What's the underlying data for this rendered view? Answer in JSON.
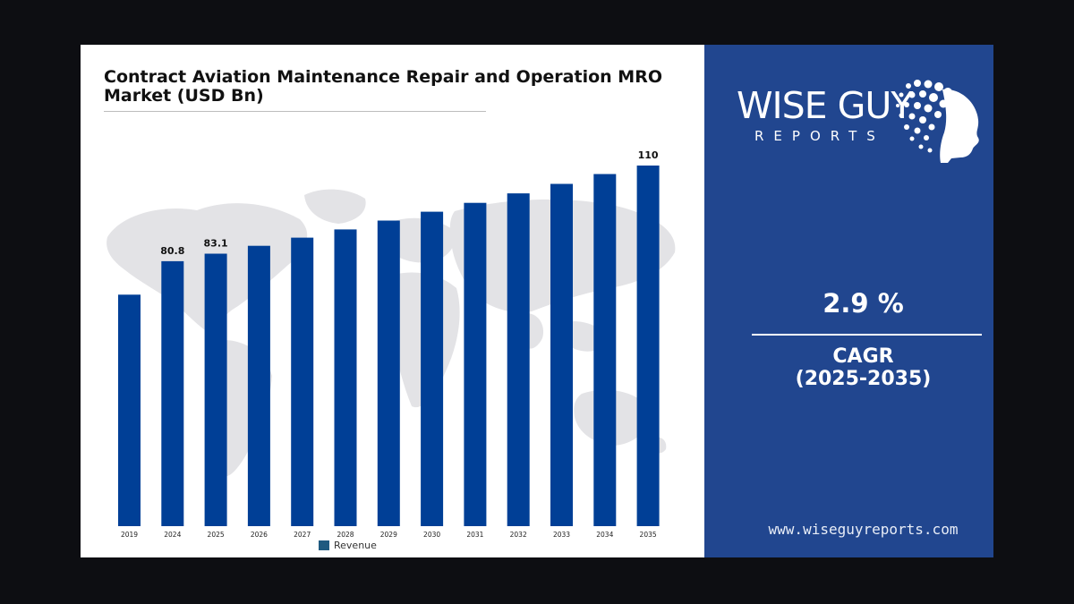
{
  "chart_title": "Contract Aviation Maintenance Repair and Operation MRO Market (USD Bn)",
  "chart_data": {
    "type": "bar",
    "title": "Contract Aviation Maintenance Repair and Operation MRO Market (USD Bn)",
    "categories": [
      "2019",
      "2024",
      "2025",
      "2026",
      "2027",
      "2028",
      "2029",
      "2030",
      "2031",
      "2032",
      "2033",
      "2034",
      "2035"
    ],
    "series": [
      {
        "name": "Revenue",
        "values": [
          70.6,
          80.8,
          83.1,
          85.5,
          88.0,
          90.5,
          93.2,
          95.9,
          98.6,
          101.5,
          104.4,
          107.4,
          110
        ],
        "color": "#003f96"
      }
    ],
    "data_labels": [
      {
        "category": "2024",
        "text": "80.8"
      },
      {
        "category": "2025",
        "text": "83.1"
      },
      {
        "category": "2035",
        "text": "110"
      }
    ],
    "ylim": [
      0,
      125
    ],
    "grid": false,
    "legend_position": "bottom"
  },
  "legend": {
    "label": "Revenue",
    "color": "#1f5a80"
  },
  "logo": {
    "main_text": "WISE GUY",
    "sub_text": "REPORTS"
  },
  "cagr": {
    "value": "2.9 %",
    "label": "CAGR",
    "period": "(2025-2035)"
  },
  "website": "www.wiseguyreports.com",
  "colors": {
    "panel_blue": "#21468f",
    "bar_blue": "#003f96",
    "page_bg": "#0d0e12"
  }
}
